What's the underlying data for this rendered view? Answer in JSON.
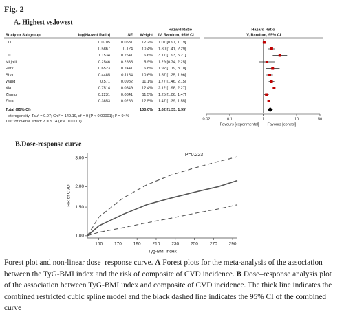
{
  "figure_label": "Fig. 2",
  "chart_data": [
    {
      "type": "forest",
      "title": "A. Highest vs.lowest",
      "group_headers": [
        "Hazard Ratio",
        "Hazard Ratio"
      ],
      "columns": [
        "Study or Subgroup",
        "log[Hazard Ratio]",
        "SE",
        "Weight",
        "IV, Random, 95% CI",
        "IV, Random, 95% CI"
      ],
      "studies": [
        {
          "name": "Cui",
          "log_hr": 0.0705,
          "se": 0.0531,
          "weight": "12.2%",
          "hr": 1.07,
          "ci": [
            0.97,
            1.19
          ],
          "hr_label": "1.07 [0.97, 1.19]"
        },
        {
          "name": "Li",
          "log_hr": 0.5867,
          "se": 0.124,
          "weight": "10.4%",
          "hr": 1.8,
          "ci": [
            1.41,
            2.29
          ],
          "hr_label": "1.80 [1.41, 2.29]"
        },
        {
          "name": "Liu",
          "log_hr": 1.1534,
          "se": 0.2541,
          "weight": "6.6%",
          "hr": 3.17,
          "ci": [
            1.93,
            5.21
          ],
          "hr_label": "3.17 [1.93, 5.21]"
        },
        {
          "name": "Mirjalili",
          "log_hr": 0.2546,
          "se": 0.2835,
          "weight": "5.9%",
          "hr": 1.29,
          "ci": [
            0.74,
            2.25
          ],
          "hr_label": "1.29 [0.74, 2.25]"
        },
        {
          "name": "Park",
          "log_hr": 0.6523,
          "se": 0.2441,
          "weight": "6.8%",
          "hr": 1.92,
          "ci": [
            1.19,
            3.1
          ],
          "hr_label": "1.92 [1.19, 3.10]"
        },
        {
          "name": "Shao",
          "log_hr": 0.4485,
          "se": 0.1154,
          "weight": "10.6%",
          "hr": 1.57,
          "ci": [
            1.25,
            1.96
          ],
          "hr_label": "1.57 [1.25, 1.96]"
        },
        {
          "name": "Wang",
          "log_hr": 0.571,
          "se": 0.0982,
          "weight": "11.1%",
          "hr": 1.77,
          "ci": [
            1.46,
            2.15
          ],
          "hr_label": "1.77 [1.46, 2.15]"
        },
        {
          "name": "Xia",
          "log_hr": 0.7514,
          "se": 0.0349,
          "weight": "12.4%",
          "hr": 2.12,
          "ci": [
            1.98,
            2.27
          ],
          "hr_label": "2.12 [1.98, 2.27]"
        },
        {
          "name": "Zhang",
          "log_hr": 0.2231,
          "se": 0.0841,
          "weight": "11.5%",
          "hr": 1.25,
          "ci": [
            1.06,
            1.47
          ],
          "hr_label": "1.25 [1.06, 1.47]"
        },
        {
          "name": "Zhou",
          "log_hr": 0.3853,
          "se": 0.0286,
          "weight": "12.5%",
          "hr": 1.47,
          "ci": [
            1.39,
            1.55
          ],
          "hr_label": "1.47 [1.39, 1.55]"
        }
      ],
      "total": {
        "name": "Total (95% CI)",
        "weight": "100.0%",
        "hr": 1.62,
        "ci": [
          1.35,
          1.95
        ],
        "hr_label": "1.62 [1.35, 1.95]"
      },
      "heterogeneity": "Heterogeneity: Tau² = 0.07; Chi² = 149.19, df = 9 (P < 0.00001); I² = 94%",
      "overall_test": "Test for overall effect: Z = 5.14 (P < 0.00001)",
      "log_scale": true,
      "xlim": [
        0.02,
        50
      ],
      "xticks": [
        0.02,
        0.1,
        1,
        10,
        50
      ],
      "left_label": "Favours [experimental]",
      "right_label": "Favours [control]",
      "square_color": "#c00000"
    },
    {
      "type": "line",
      "title": "B.Dose-response curve",
      "annotation": "P=0.223",
      "x_label": "Tyg-BMI index",
      "y_label": "HR of CVD",
      "x": [
        138,
        150,
        175,
        200,
        225,
        250,
        275,
        295
      ],
      "series": [
        {
          "color": "#555555",
          "style": "solid",
          "values": [
            1.0,
            1.15,
            1.35,
            1.55,
            1.7,
            1.85,
            2.0,
            2.18
          ]
        },
        {
          "color": "#555555",
          "style": "dashed",
          "values": [
            1.0,
            1.3,
            1.7,
            2.05,
            2.35,
            2.6,
            2.85,
            3.05
          ]
        },
        {
          "color": "#555555",
          "style": "dashed",
          "values": [
            1.0,
            1.05,
            1.12,
            1.2,
            1.28,
            1.37,
            1.46,
            1.55
          ]
        }
      ],
      "xlim": [
        138,
        295
      ],
      "ylim": [
        0.97,
        3.2
      ],
      "log_scale_y": true,
      "xticks": [
        150,
        170,
        190,
        210,
        230,
        250,
        270,
        290
      ],
      "yticks": [
        {
          "value": 1,
          "label": "1.00"
        },
        {
          "value": 1.5,
          "label": "1.50"
        },
        {
          "value": 2,
          "label": "2.00"
        },
        {
          "value": 3,
          "label": "3.00"
        }
      ]
    }
  ],
  "caption": {
    "lead": "Forest plot and non-linear dose–response curve.",
    "a_label": "A",
    "a_text": "Forest plots for the meta-analysis of the association between the TyG-BMI index and the risk of composite of CVD incidence.",
    "b_label": "B",
    "b_text": "Dose–response analysis plot of the association between TyG-BMI index and composite of CVD incidence. The thick line indicates the combined restricted cubic spline model and the black dashed line indicates the 95% CI of the combined curve"
  }
}
